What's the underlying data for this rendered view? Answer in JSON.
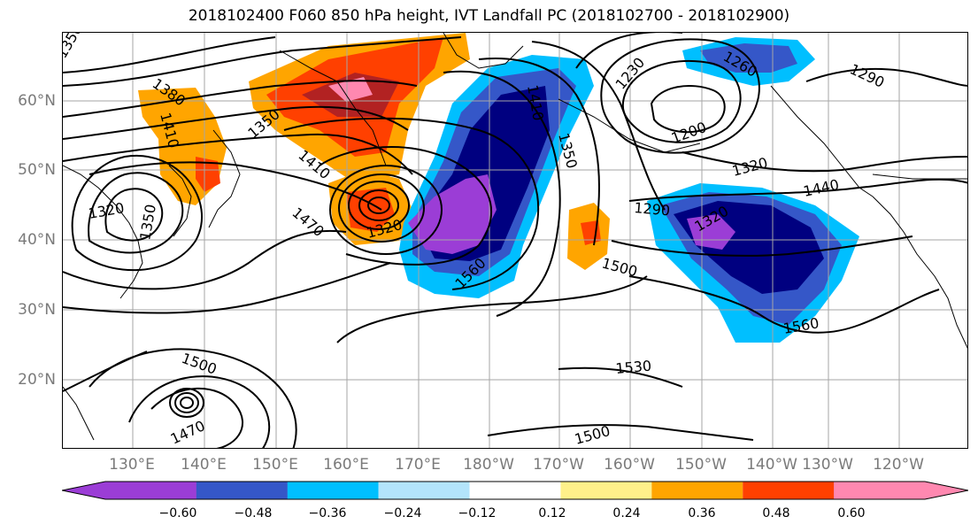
{
  "title": "2018102400 F060 850 hPa height, IVT Landfall PC (2018102700 - 2018102900)",
  "map": {
    "lat_labels": [
      "60°N",
      "50°N",
      "40°N",
      "30°N",
      "20°N"
    ],
    "lon_labels": [
      "130°E",
      "140°E",
      "150°E",
      "160°E",
      "170°E",
      "180°W",
      "170°W",
      "160°W",
      "150°W",
      "140°W",
      "130°W",
      "120°W"
    ],
    "gridlines": true,
    "contour_variable": "850 hPa height",
    "contour_labels": [
      "1350",
      "1380",
      "1410",
      "1350",
      "1320",
      "1350",
      "1410",
      "1470",
      "1320",
      "1410",
      "1350",
      "1230",
      "1260",
      "1290",
      "1200",
      "1320",
      "1440",
      "1290",
      "1320",
      "1500",
      "1560",
      "1560",
      "1500",
      "1470",
      "1530",
      "1500"
    ],
    "shading_colors": {
      "strong_negative": "#9b3dd6",
      "negative_navy": "#000080",
      "negative_blue": "#3557c8",
      "negative_cyan": "#00bfff",
      "weak_negative": "#b3e4fb",
      "positive_yellow": "#fff08a",
      "positive_orange": "#ffa500",
      "positive_redorange": "#ff4000",
      "positive_darkred": "#b22222",
      "strong_positive": "#ff88b0"
    }
  },
  "colorbar": {
    "ticks": [
      "−0.60",
      "−0.48",
      "−0.36",
      "−0.24",
      "−0.12",
      "0.12",
      "0.24",
      "0.36",
      "0.48",
      "0.60"
    ],
    "colors": [
      "#9b3dd6",
      "#000080",
      "#3557c8",
      "#00bfff",
      "#b3e4fb",
      "#ffffff",
      "#fff08a",
      "#ffa500",
      "#ff4000",
      "#b22222",
      "#ff88b0"
    ],
    "extend": "both"
  }
}
